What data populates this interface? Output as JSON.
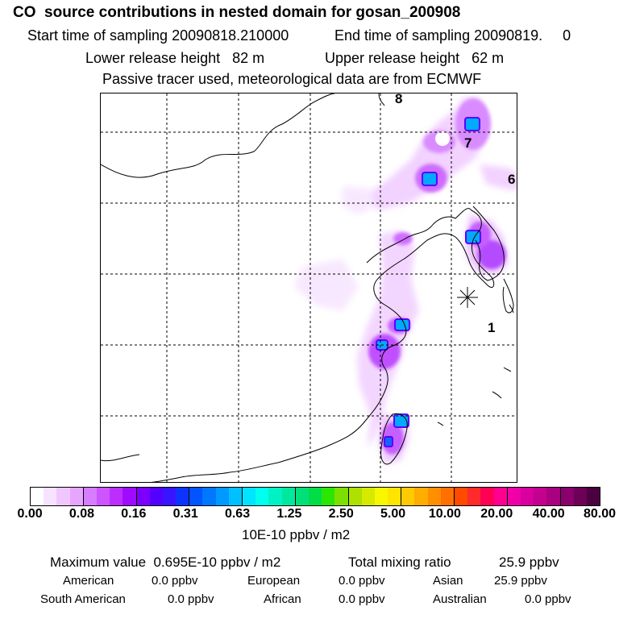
{
  "header": {
    "title": "CO  source contributions in nested domain for gosan_200908",
    "start_label": "Start time of sampling 20090818.210000",
    "end_label": "End time of sampling 20090819.     0",
    "lower_label": "Lower release height   82 m",
    "upper_label": "Upper release height   62 m",
    "note": "Passive tracer used, meteorological data are from ECMWF"
  },
  "chart_data": {
    "type": "heatmap",
    "title": "CO  source contributions in nested domain for gosan_200908",
    "units": "10E-10 ppbv / m2",
    "grid": true,
    "site_marker": "Gosan",
    "region_labels": [
      "8",
      "7",
      "6",
      "1"
    ],
    "colorbar": {
      "ticks": [
        "0.00",
        "0.08",
        "0.16",
        "0.31",
        "0.63",
        "1.25",
        "2.50",
        "5.00",
        "10.00",
        "20.00",
        "40.00",
        "80.00"
      ],
      "colors": [
        "#ffffff",
        "#f7e3ff",
        "#f0c6ff",
        "#e6a6ff",
        "#d77dff",
        "#cc55ff",
        "#bb2eff",
        "#9e0bff",
        "#7c00ff",
        "#5400ff",
        "#3914ff",
        "#0d34ff",
        "#0055ff",
        "#0077ff",
        "#0099ff",
        "#00c0ff",
        "#00e5ff",
        "#00ffee",
        "#00f2c4",
        "#00e89e",
        "#00e07a",
        "#00dd46",
        "#2ae600",
        "#7be000",
        "#aee000",
        "#d6ea00",
        "#f7f700",
        "#ffe400",
        "#ffca00",
        "#ffad00",
        "#ff8f00",
        "#ff7000",
        "#ff4a00",
        "#ff2a2a",
        "#ff0055",
        "#ff0090",
        "#f000a8",
        "#d8009f",
        "#c4008f",
        "#a8007f",
        "#8a006c",
        "#6d0057",
        "#4b0040"
      ]
    }
  },
  "stats": {
    "max_label": "Maximum value  0.695E-10 ppbv / m2",
    "total_label": "Total mixing ratio",
    "total_value": "25.9 ppbv",
    "american_label": "American",
    "american_value": "0.0 ppbv",
    "european_label": "European",
    "european_value": "0.0 ppbv",
    "asian_label": "Asian",
    "asian_value": "25.9 ppbv",
    "south_american_label": "South American",
    "south_american_value": "0.0 ppbv",
    "african_label": "African",
    "african_value": "0.0 ppbv",
    "australian_label": "Australian",
    "australian_value": "0.0 ppbv"
  }
}
